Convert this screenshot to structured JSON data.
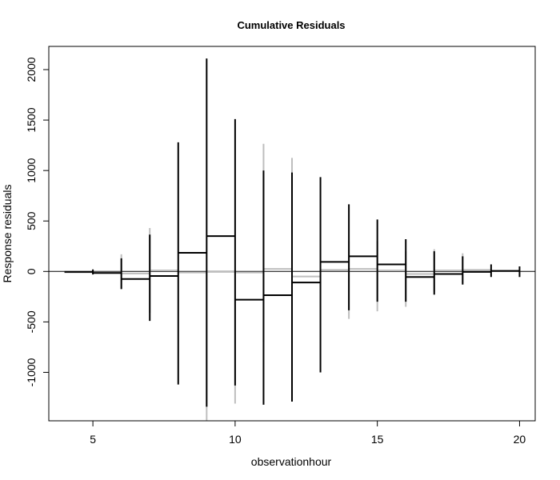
{
  "chart_data": {
    "type": "line",
    "title": "Cumulative Residuals",
    "xlabel": "observationhour",
    "ylabel": "Response  residuals",
    "xlim": [
      3.45,
      20.55
    ],
    "ylim": [
      -1480,
      2230
    ],
    "xticks": [
      5,
      10,
      15,
      20
    ],
    "xtick_labels": [
      "5",
      "10",
      "15",
      "20"
    ],
    "yticks": [
      -1000,
      -500,
      0,
      500,
      1000,
      1500,
      2000
    ],
    "ytick_labels": [
      "-1000",
      "-500",
      "0",
      "500",
      "1000",
      "1500",
      "2000"
    ],
    "grid": false,
    "legend": false,
    "zero_line": 0,
    "series": [
      {
        "color": "#000000",
        "steps": [
          {
            "x0": 4,
            "x1": 5,
            "y": -5
          },
          {
            "x0": 5,
            "x1": 6,
            "y": -15
          },
          {
            "x0": 6,
            "x1": 7,
            "y": -75
          },
          {
            "x0": 7,
            "x1": 8,
            "y": -45
          },
          {
            "x0": 8,
            "x1": 9,
            "y": 185
          },
          {
            "x0": 9,
            "x1": 10,
            "y": 350
          },
          {
            "x0": 10,
            "x1": 11,
            "y": -280
          },
          {
            "x0": 11,
            "x1": 12,
            "y": -235
          },
          {
            "x0": 12,
            "x1": 13,
            "y": -110
          },
          {
            "x0": 13,
            "x1": 14,
            "y": 95
          },
          {
            "x0": 14,
            "x1": 15,
            "y": 150
          },
          {
            "x0": 15,
            "x1": 16,
            "y": 70
          },
          {
            "x0": 16,
            "x1": 17,
            "y": -55
          },
          {
            "x0": 17,
            "x1": 18,
            "y": -25
          },
          {
            "x0": 18,
            "x1": 19,
            "y": -5
          },
          {
            "x0": 19,
            "x1": 20,
            "y": 5
          }
        ],
        "vbars": [
          {
            "x": 5,
            "low": -30,
            "high": 20
          },
          {
            "x": 6,
            "low": -175,
            "high": 130
          },
          {
            "x": 7,
            "low": -490,
            "high": 365
          },
          {
            "x": 8,
            "low": -1120,
            "high": 1280
          },
          {
            "x": 9,
            "low": -1340,
            "high": 2110
          },
          {
            "x": 10,
            "low": -1130,
            "high": 1510
          },
          {
            "x": 11,
            "low": -1320,
            "high": 1000
          },
          {
            "x": 12,
            "low": -1290,
            "high": 980
          },
          {
            "x": 13,
            "low": -1000,
            "high": 935
          },
          {
            "x": 14,
            "low": -385,
            "high": 665
          },
          {
            "x": 15,
            "low": -300,
            "high": 515
          },
          {
            "x": 16,
            "low": -300,
            "high": 320
          },
          {
            "x": 17,
            "low": -230,
            "high": 200
          },
          {
            "x": 18,
            "low": -130,
            "high": 150
          },
          {
            "x": 19,
            "low": -55,
            "high": 70
          },
          {
            "x": 20,
            "low": -55,
            "high": 50
          }
        ]
      },
      {
        "color": "#bebebe",
        "steps": [
          {
            "x0": 4,
            "x1": 5,
            "y": -8
          },
          {
            "x0": 5,
            "x1": 6,
            "y": -10
          },
          {
            "x0": 6,
            "x1": 7,
            "y": -20
          },
          {
            "x0": 7,
            "x1": 8,
            "y": 10
          },
          {
            "x0": 8,
            "x1": 9,
            "y": -10
          },
          {
            "x0": 9,
            "x1": 10,
            "y": -5
          },
          {
            "x0": 10,
            "x1": 11,
            "y": -10
          },
          {
            "x0": 11,
            "x1": 12,
            "y": 25
          },
          {
            "x0": 12,
            "x1": 13,
            "y": -50
          },
          {
            "x0": 13,
            "x1": 14,
            "y": 15
          },
          {
            "x0": 14,
            "x1": 15,
            "y": 25
          },
          {
            "x0": 15,
            "x1": 16,
            "y": 10
          },
          {
            "x0": 16,
            "x1": 17,
            "y": -25
          },
          {
            "x0": 17,
            "x1": 18,
            "y": 10
          },
          {
            "x0": 18,
            "x1": 19,
            "y": 15
          },
          {
            "x0": 19,
            "x1": 20,
            "y": 5
          }
        ],
        "vbars": [
          {
            "x": 6,
            "low": -170,
            "high": 170
          },
          {
            "x": 7,
            "low": -410,
            "high": 430
          },
          {
            "x": 9,
            "low": -1480,
            "high": 0
          },
          {
            "x": 10,
            "low": -1310,
            "high": 0
          },
          {
            "x": 11,
            "low": -700,
            "high": 1265
          },
          {
            "x": 12,
            "low": -600,
            "high": 1125
          },
          {
            "x": 14,
            "low": -470,
            "high": 300
          },
          {
            "x": 15,
            "low": -395,
            "high": 300
          },
          {
            "x": 16,
            "low": -350,
            "high": 200
          },
          {
            "x": 17,
            "low": -200,
            "high": 220
          },
          {
            "x": 18,
            "low": -120,
            "high": 180
          }
        ]
      }
    ]
  }
}
